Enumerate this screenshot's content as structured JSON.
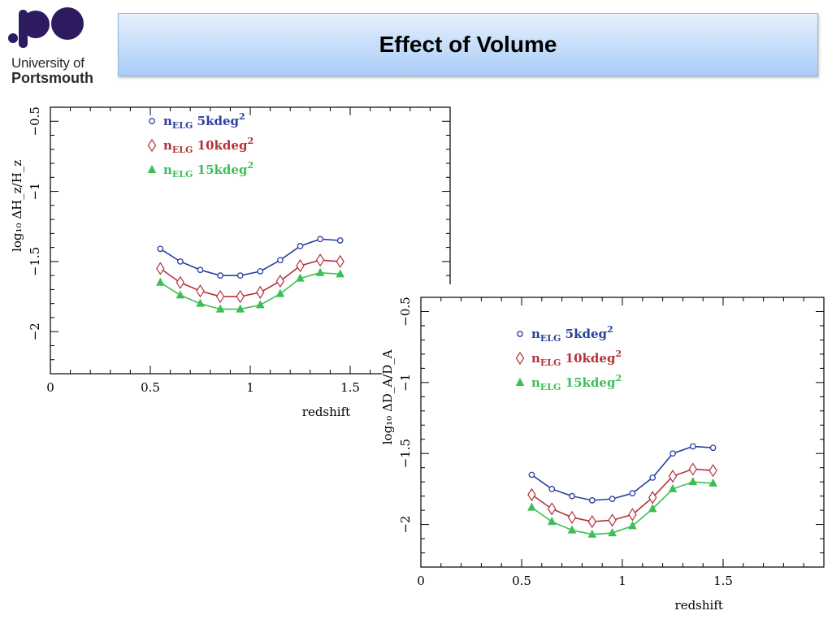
{
  "logo": {
    "line1": "University of",
    "line2": "Portsmouth",
    "color": "#2d1a5f"
  },
  "title": "Effect of Volume",
  "chart_data": [
    {
      "type": "line",
      "ylabel": "log₁₀ ΔH_z/H_z",
      "xlabel": "redshift",
      "xlim": [
        0,
        2.0
      ],
      "ylim": [
        -2.3,
        -0.4
      ],
      "xticks": [
        0,
        0.5,
        1,
        1.5
      ],
      "xtick_labels": [
        "0",
        "0.5",
        "1",
        "1.5"
      ],
      "yticks": [
        -0.5,
        -1,
        -1.5,
        -2
      ],
      "ytick_labels": [
        "−0.5",
        "−1",
        "−1.5",
        "−2"
      ],
      "legend_position": "top-left",
      "x": [
        0.55,
        0.65,
        0.75,
        0.85,
        0.95,
        1.05,
        1.15,
        1.25,
        1.35,
        1.45
      ],
      "series": [
        {
          "name": "n_ELG 5kdeg²",
          "label_main": "n",
          "label_sub": "ELG",
          "label_text": " 5kdeg",
          "label_sup": "2",
          "marker": "circle",
          "color": "#2b3f9e",
          "values": [
            -1.41,
            -1.5,
            -1.56,
            -1.6,
            -1.6,
            -1.57,
            -1.49,
            -1.39,
            -1.34,
            -1.35
          ]
        },
        {
          "name": "n_ELG 10kdeg²",
          "label_main": "n",
          "label_sub": "ELG",
          "label_text": " 10kdeg",
          "label_sup": "2",
          "marker": "diamond",
          "color": "#b2333a",
          "values": [
            -1.55,
            -1.65,
            -1.71,
            -1.75,
            -1.75,
            -1.72,
            -1.64,
            -1.53,
            -1.49,
            -1.5
          ]
        },
        {
          "name": "n_ELG 15kdeg²",
          "label_main": "n",
          "label_sub": "ELG",
          "label_text": " 15kdeg",
          "label_sup": "2",
          "marker": "triangle",
          "color": "#3cbf57",
          "values": [
            -1.65,
            -1.74,
            -1.8,
            -1.84,
            -1.84,
            -1.81,
            -1.73,
            -1.62,
            -1.58,
            -1.59
          ]
        }
      ]
    },
    {
      "type": "line",
      "ylabel": "log₁₀ ΔD_A/D_A",
      "xlabel": "redshift",
      "xlim": [
        0,
        2.0
      ],
      "ylim": [
        -2.3,
        -0.4
      ],
      "xticks": [
        0,
        0.5,
        1,
        1.5
      ],
      "xtick_labels": [
        "0",
        "0.5",
        "1",
        "1.5"
      ],
      "yticks": [
        -0.5,
        -1,
        -1.5,
        -2
      ],
      "ytick_labels": [
        "−0.5",
        "−1",
        "−1.5",
        "−2"
      ],
      "legend_position": "top-left",
      "x": [
        0.55,
        0.65,
        0.75,
        0.85,
        0.95,
        1.05,
        1.15,
        1.25,
        1.35,
        1.45
      ],
      "series": [
        {
          "name": "n_ELG 5kdeg²",
          "label_main": "n",
          "label_sub": "ELG",
          "label_text": " 5kdeg",
          "label_sup": "2",
          "marker": "circle",
          "color": "#2b3f9e",
          "values": [
            -1.65,
            -1.75,
            -1.8,
            -1.83,
            -1.82,
            -1.78,
            -1.67,
            -1.5,
            -1.45,
            -1.46
          ]
        },
        {
          "name": "n_ELG 10kdeg²",
          "label_main": "n",
          "label_sub": "ELG",
          "label_text": " 10kdeg",
          "label_sup": "2",
          "marker": "diamond",
          "color": "#b2333a",
          "values": [
            -1.79,
            -1.89,
            -1.95,
            -1.98,
            -1.97,
            -1.93,
            -1.81,
            -1.66,
            -1.61,
            -1.62
          ]
        },
        {
          "name": "n_ELG 15kdeg²",
          "label_main": "n",
          "label_sub": "ELG",
          "label_text": " 15kdeg",
          "label_sup": "2",
          "marker": "triangle",
          "color": "#3cbf57",
          "values": [
            -1.88,
            -1.98,
            -2.04,
            -2.07,
            -2.06,
            -2.01,
            -1.89,
            -1.75,
            -1.7,
            -1.71
          ]
        }
      ]
    }
  ]
}
